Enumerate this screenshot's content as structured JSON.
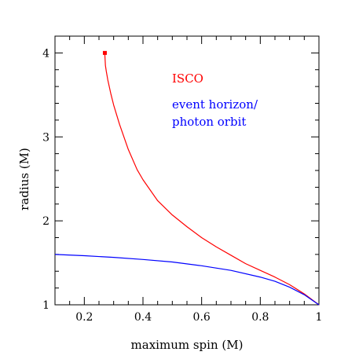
{
  "chart_data": {
    "type": "line",
    "xlabel": "maximum spin (M)",
    "ylabel": "radius (M)",
    "xlim": [
      0.1,
      1.0
    ],
    "ylim": [
      1.0,
      4.2
    ],
    "grid": false,
    "x_major_ticks": [
      0.2,
      0.4,
      0.6,
      0.8,
      1.0
    ],
    "x_tick_labels": [
      "0.2",
      "0.4",
      "0.6",
      "0.8",
      "1"
    ],
    "x_minor_step": 0.05,
    "y_major_ticks": [
      1,
      2,
      3,
      4
    ],
    "y_tick_labels": [
      "1",
      "2",
      "3",
      "4"
    ],
    "y_minor_step": 0.2,
    "annotations": [
      {
        "text": "ISCO",
        "color": "#ff0000"
      },
      {
        "text": "event horizon/",
        "color": "#0000ff"
      },
      {
        "text": "photon orbit",
        "color": "#0000ff"
      }
    ],
    "series": [
      {
        "color": "#ff0000",
        "x": [
          0.27,
          0.272,
          0.275,
          0.28,
          0.29,
          0.3,
          0.32,
          0.35,
          0.38,
          0.4,
          0.45,
          0.5,
          0.55,
          0.6,
          0.65,
          0.7,
          0.75,
          0.8,
          0.85,
          0.9,
          0.95,
          1.0
        ],
        "y": [
          3.98,
          3.85,
          3.78,
          3.68,
          3.52,
          3.38,
          3.15,
          2.85,
          2.61,
          2.49,
          2.24,
          2.07,
          1.93,
          1.8,
          1.69,
          1.59,
          1.49,
          1.41,
          1.33,
          1.24,
          1.13,
          1.0
        ],
        "marker": {
          "x": 0.27,
          "y": 4.0,
          "shape": "square"
        }
      },
      {
        "color": "#0000ff",
        "x": [
          0.1,
          0.2,
          0.3,
          0.4,
          0.5,
          0.6,
          0.7,
          0.8,
          0.85,
          0.9,
          0.95,
          1.0
        ],
        "y": [
          1.6,
          1.585,
          1.565,
          1.54,
          1.51,
          1.465,
          1.41,
          1.33,
          1.28,
          1.21,
          1.12,
          1.0
        ]
      }
    ]
  }
}
